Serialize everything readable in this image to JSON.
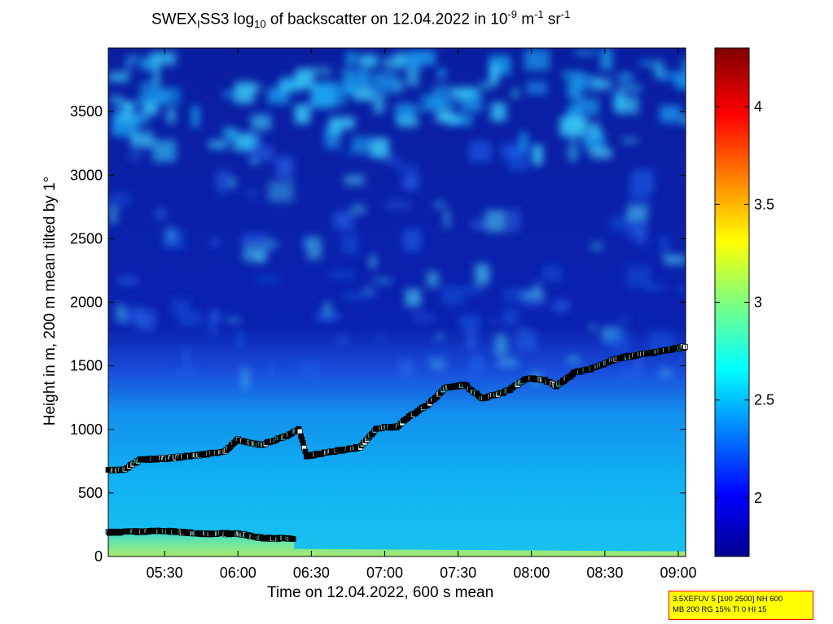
{
  "title": {
    "t1": "SWEX",
    "t1_sub": "I",
    "t2": "SS3 log",
    "t2_sub": "10",
    "t3": " of backscatter on 12.04.2022 in 10",
    "t3_sup": "-9",
    "t4": " m",
    "t4_sup": "-1",
    "t5": " sr",
    "t5_sup": "-1"
  },
  "chart_data": {
    "type": "heatmap",
    "xlabel": "Time on 12.04.2022, 600 s mean",
    "ylabel": "Height in m, 200 m mean tilted by 1°",
    "xlim": [
      "05:07",
      "09:03"
    ],
    "ylim": [
      0,
      4000
    ],
    "x_ticks": [
      "05:30",
      "06:00",
      "06:30",
      "07:00",
      "07:30",
      "08:00",
      "08:30",
      "09:00"
    ],
    "y_ticks": [
      0,
      500,
      1000,
      1500,
      2000,
      2500,
      3000,
      3500
    ],
    "colorbar": {
      "range": [
        1.7,
        4.3
      ],
      "ticks": [
        2,
        2.5,
        3,
        3.5,
        4
      ]
    },
    "grid": false,
    "layer_heights_m": [
      [
        "05:07",
        680
      ],
      [
        "05:13",
        680
      ],
      [
        "05:20",
        760
      ],
      [
        "05:30",
        770
      ],
      [
        "05:45",
        800
      ],
      [
        "05:55",
        830
      ],
      [
        "06:00",
        920
      ],
      [
        "06:05",
        890
      ],
      [
        "06:10",
        880
      ],
      [
        "06:20",
        950
      ],
      [
        "06:25",
        1000
      ],
      [
        "06:28",
        790
      ],
      [
        "06:37",
        820
      ],
      [
        "06:50",
        860
      ],
      [
        "06:57",
        1010
      ],
      [
        "07:05",
        1020
      ],
      [
        "07:10",
        1100
      ],
      [
        "07:18",
        1200
      ],
      [
        "07:25",
        1330
      ],
      [
        "07:33",
        1350
      ],
      [
        "07:40",
        1240
      ],
      [
        "07:50",
        1300
      ],
      [
        "07:58",
        1400
      ],
      [
        "08:05",
        1390
      ],
      [
        "08:10",
        1340
      ],
      [
        "08:18",
        1450
      ],
      [
        "08:25",
        1480
      ],
      [
        "08:35",
        1560
      ],
      [
        "08:45",
        1590
      ],
      [
        "08:55",
        1620
      ],
      [
        "09:03",
        1650
      ]
    ],
    "lower_layer_heights_m": [
      [
        "05:07",
        190
      ],
      [
        "05:30",
        200
      ],
      [
        "05:45",
        180
      ],
      [
        "06:00",
        180
      ],
      [
        "06:10",
        145
      ],
      [
        "06:23",
        140
      ]
    ]
  },
  "info_box": {
    "line1": "3.5XEFUV 5 [100 2500] NH 600",
    "line2": "MB 200 RG 15% TI 0 HI 15"
  }
}
